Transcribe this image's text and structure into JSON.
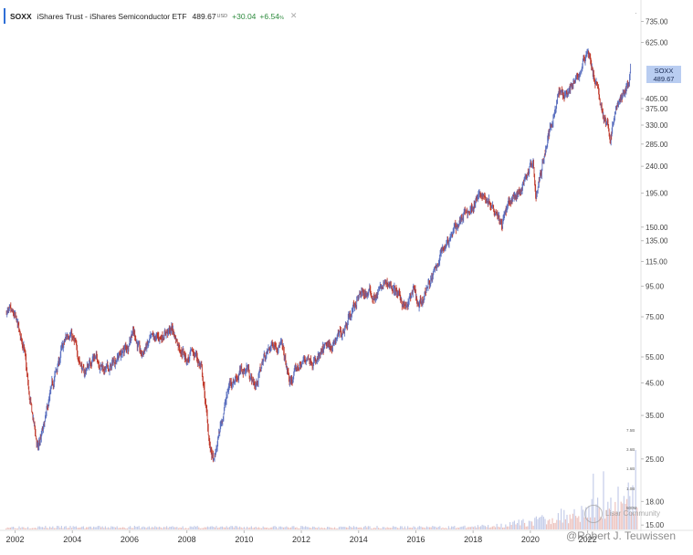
{
  "legend": {
    "symbol": "SOXX",
    "name": "iShares Trust - iShares Semiconductor ETF",
    "price": "489.67",
    "currency": "USD",
    "change": "+30.04",
    "change_pct": "+6.54",
    "pct_unit": "%",
    "close_icon": "close-icon",
    "up_color": "#2e8b3e"
  },
  "price_badge": {
    "symbol": "SOXX",
    "value": "489.67",
    "color": "#b9cdf1"
  },
  "watermark": {
    "text": "@Robert J. Teuwissen",
    "logo_text": "Lisar Community"
  },
  "chart_data": {
    "type": "line",
    "ticker": "SOXX",
    "scale": "log",
    "ylim": [
      14.5,
      820
    ],
    "xlim": [
      2001.6,
      2023.8
    ],
    "x_ticks": [
      "2002",
      "2004",
      "2006",
      "2008",
      "2010",
      "2012",
      "2014",
      "2016",
      "2018",
      "2020",
      "2022"
    ],
    "x_tick_values": [
      2002,
      2004,
      2006,
      2008,
      2010,
      2012,
      2014,
      2016,
      2018,
      2020,
      2022
    ],
    "y_ticks": [
      "735.00",
      "625.00",
      "405.00",
      "375.00",
      "330.00",
      "285.00",
      "240.00",
      "195.00",
      "150.00",
      "135.00",
      "115.00",
      "95.00",
      "75.00",
      "55.00",
      "45.00",
      "35.00",
      "25.00",
      "18.00",
      "15.00"
    ],
    "y_tick_values": [
      735,
      625,
      405,
      375,
      330,
      285,
      240,
      195,
      150,
      135,
      115,
      95,
      75,
      55,
      45,
      35,
      25,
      18,
      15
    ],
    "volume_ticks": [
      "7.5B",
      "3.6B",
      "1.6B",
      "1.0B",
      "500M"
    ],
    "last_value": 489.67,
    "series": [
      {
        "color": "#c0392b",
        "x": [
          2001.7,
          2002.0,
          2002.3,
          2002.5,
          2002.8,
          2003.0,
          2003.3,
          2003.6,
          2003.9,
          2004.1,
          2004.4,
          2004.7,
          2005.0,
          2005.3,
          2005.6,
          2005.9,
          2006.1,
          2006.4,
          2006.6,
          2006.9,
          2007.2,
          2007.5,
          2007.8,
          2008.0,
          2008.3,
          2008.5,
          2008.8,
          2008.95,
          2009.2,
          2009.5,
          2009.8,
          2010.1,
          2010.4,
          2010.7,
          2011.0,
          2011.3,
          2011.6,
          2011.9,
          2012.2,
          2012.5,
          2012.8,
          2013.1,
          2013.4,
          2013.7,
          2014.0,
          2014.3,
          2014.6,
          2014.9,
          2015.2,
          2015.5,
          2015.7,
          2015.9,
          2016.1,
          2016.4,
          2016.7,
          2017.0,
          2017.3,
          2017.6,
          2017.9,
          2018.2,
          2018.5,
          2018.8,
          2019.0,
          2019.3,
          2019.6,
          2019.9,
          2020.1,
          2020.2,
          2020.4,
          2020.7,
          2021.0,
          2021.3,
          2021.6,
          2021.8,
          2022.0,
          2022.2,
          2022.5,
          2022.8,
          2023.0,
          2023.2,
          2023.4,
          2023.5
        ],
        "y": [
          78,
          74,
          60,
          40,
          27,
          32,
          45,
          58,
          68,
          60,
          48,
          55,
          52,
          50,
          56,
          60,
          68,
          56,
          60,
          63,
          66,
          68,
          58,
          55,
          56,
          50,
          28,
          24,
          33,
          45,
          48,
          52,
          44,
          55,
          62,
          60,
          44,
          50,
          55,
          52,
          58,
          62,
          67,
          76,
          88,
          92,
          90,
          96,
          95,
          85,
          80,
          92,
          78,
          95,
          110,
          130,
          145,
          160,
          175,
          190,
          185,
          175,
          155,
          180,
          190,
          230,
          250,
          185,
          235,
          330,
          420,
          440,
          460,
          520,
          600,
          480,
          380,
          300,
          380,
          400,
          440,
          489.67
        ]
      }
    ]
  }
}
